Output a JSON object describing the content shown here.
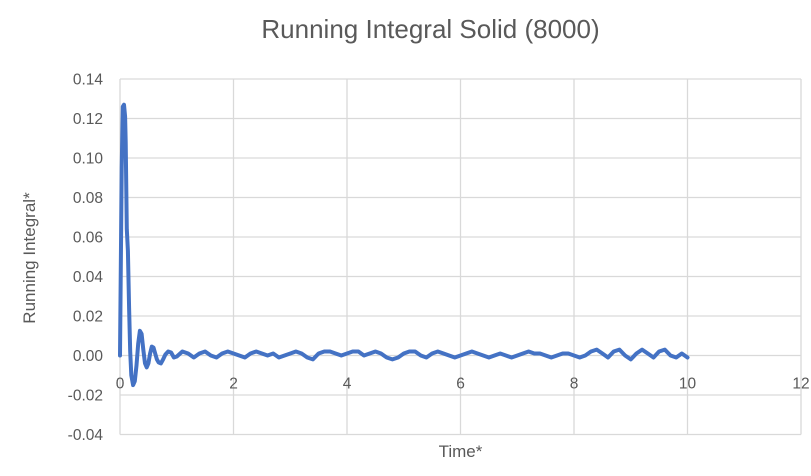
{
  "chart": {
    "title": "Running Integral Solid (8000)",
    "x_axis_title": "Time*",
    "y_axis_title": "Running Integral*",
    "colors": {
      "series": "#4472C4",
      "gridline": "#D9D9D9",
      "text": "#595959",
      "background": "#FFFFFF"
    }
  },
  "chart_data": {
    "type": "line",
    "title": "Running Integral Solid (8000)",
    "xlabel": "Time*",
    "ylabel": "Running Integral*",
    "xlim": [
      0,
      12
    ],
    "ylim": [
      -0.04,
      0.14
    ],
    "x_ticks": [
      "0",
      "2",
      "4",
      "6",
      "8",
      "10",
      "12"
    ],
    "y_ticks": [
      "0.14",
      "0.12",
      "0.10",
      "0.08",
      "0.06",
      "0.04",
      "0.02",
      "0.00",
      "-0.02",
      "-0.04"
    ],
    "grid": true,
    "legend": false,
    "series": [
      {
        "name": "Running Integral Solid",
        "color": "#4472C4",
        "points": [
          [
            0.0,
            0.0
          ],
          [
            0.03,
            0.095
          ],
          [
            0.05,
            0.126
          ],
          [
            0.07,
            0.127
          ],
          [
            0.09,
            0.121
          ],
          [
            0.1,
            0.108
          ],
          [
            0.12,
            0.064
          ],
          [
            0.14,
            0.053
          ],
          [
            0.16,
            0.024
          ],
          [
            0.18,
            0.002
          ],
          [
            0.2,
            -0.01
          ],
          [
            0.23,
            -0.015
          ],
          [
            0.26,
            -0.013
          ],
          [
            0.29,
            -0.005
          ],
          [
            0.32,
            0.006
          ],
          [
            0.35,
            0.0125
          ],
          [
            0.38,
            0.011
          ],
          [
            0.41,
            0.003
          ],
          [
            0.44,
            -0.004
          ],
          [
            0.47,
            -0.006
          ],
          [
            0.5,
            -0.004
          ],
          [
            0.53,
            0.001
          ],
          [
            0.56,
            0.0045
          ],
          [
            0.59,
            0.004
          ],
          [
            0.62,
            0.001
          ],
          [
            0.65,
            -0.002
          ],
          [
            0.68,
            -0.0035
          ],
          [
            0.72,
            -0.004
          ],
          [
            0.76,
            -0.002
          ],
          [
            0.8,
            0.0005
          ],
          [
            0.85,
            0.002
          ],
          [
            0.9,
            0.0015
          ],
          [
            0.95,
            -0.001
          ],
          [
            1.0,
            -0.0005
          ],
          [
            1.1,
            0.002
          ],
          [
            1.2,
            0.001
          ],
          [
            1.3,
            -0.001
          ],
          [
            1.4,
            0.001
          ],
          [
            1.5,
            0.002
          ],
          [
            1.6,
            0.0
          ],
          [
            1.7,
            -0.001
          ],
          [
            1.8,
            0.001
          ],
          [
            1.9,
            0.002
          ],
          [
            2.0,
            0.001
          ],
          [
            2.1,
            0.0
          ],
          [
            2.2,
            -0.001
          ],
          [
            2.3,
            0.001
          ],
          [
            2.4,
            0.002
          ],
          [
            2.5,
            0.001
          ],
          [
            2.6,
            0.0
          ],
          [
            2.7,
            0.001
          ],
          [
            2.8,
            -0.001
          ],
          [
            2.9,
            0.0
          ],
          [
            3.0,
            0.001
          ],
          [
            3.1,
            0.002
          ],
          [
            3.2,
            0.001
          ],
          [
            3.3,
            -0.001
          ],
          [
            3.4,
            -0.002
          ],
          [
            3.5,
            0.001
          ],
          [
            3.6,
            0.002
          ],
          [
            3.7,
            0.002
          ],
          [
            3.8,
            0.001
          ],
          [
            3.9,
            0.0
          ],
          [
            4.0,
            0.001
          ],
          [
            4.1,
            0.002
          ],
          [
            4.2,
            0.002
          ],
          [
            4.3,
            0.0
          ],
          [
            4.4,
            0.001
          ],
          [
            4.5,
            0.002
          ],
          [
            4.6,
            0.001
          ],
          [
            4.7,
            -0.001
          ],
          [
            4.8,
            -0.002
          ],
          [
            4.9,
            -0.001
          ],
          [
            5.0,
            0.001
          ],
          [
            5.1,
            0.002
          ],
          [
            5.2,
            0.002
          ],
          [
            5.3,
            0.0
          ],
          [
            5.4,
            -0.001
          ],
          [
            5.5,
            0.001
          ],
          [
            5.6,
            0.002
          ],
          [
            5.7,
            0.001
          ],
          [
            5.8,
            0.0
          ],
          [
            5.9,
            -0.001
          ],
          [
            6.0,
            0.0
          ],
          [
            6.1,
            0.001
          ],
          [
            6.2,
            0.002
          ],
          [
            6.3,
            0.001
          ],
          [
            6.4,
            0.0
          ],
          [
            6.5,
            -0.001
          ],
          [
            6.6,
            0.0
          ],
          [
            6.7,
            0.001
          ],
          [
            6.8,
            0.0
          ],
          [
            6.9,
            -0.001
          ],
          [
            7.0,
            0.0
          ],
          [
            7.1,
            0.001
          ],
          [
            7.2,
            0.002
          ],
          [
            7.3,
            0.001
          ],
          [
            7.4,
            0.001
          ],
          [
            7.5,
            0.0
          ],
          [
            7.6,
            -0.001
          ],
          [
            7.7,
            0.0
          ],
          [
            7.8,
            0.001
          ],
          [
            7.9,
            0.001
          ],
          [
            8.0,
            0.0
          ],
          [
            8.1,
            -0.001
          ],
          [
            8.2,
            0.0
          ],
          [
            8.3,
            0.002
          ],
          [
            8.4,
            0.003
          ],
          [
            8.5,
            0.001
          ],
          [
            8.6,
            -0.001
          ],
          [
            8.7,
            0.002
          ],
          [
            8.8,
            0.003
          ],
          [
            8.9,
            0.0
          ],
          [
            9.0,
            -0.002
          ],
          [
            9.1,
            0.001
          ],
          [
            9.2,
            0.003
          ],
          [
            9.3,
            0.001
          ],
          [
            9.4,
            -0.001
          ],
          [
            9.5,
            0.002
          ],
          [
            9.6,
            0.003
          ],
          [
            9.7,
            0.0
          ],
          [
            9.8,
            -0.001
          ],
          [
            9.9,
            0.001
          ],
          [
            10.0,
            -0.001
          ]
        ]
      }
    ]
  }
}
